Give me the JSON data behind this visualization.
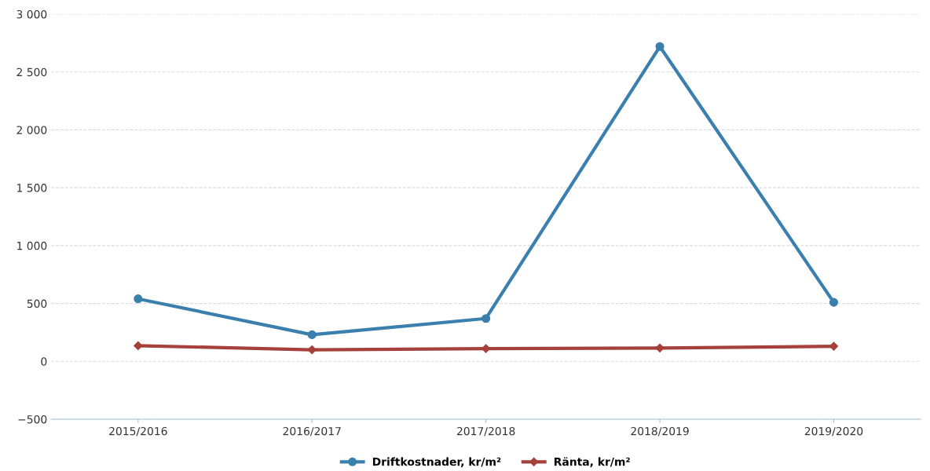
{
  "chart_data": {
    "type": "line",
    "categories": [
      "2015/2016",
      "2016/2017",
      "2017/2018",
      "2018/2019",
      "2019/2020"
    ],
    "series": [
      {
        "name": "Driftkostnader, kr/m²",
        "color": "#3a7fad",
        "marker": "circle",
        "values": [
          540,
          230,
          370,
          2720,
          510
        ]
      },
      {
        "name": "Ränta, kr/m²",
        "color": "#a5403a",
        "marker": "diamond",
        "values": [
          135,
          100,
          110,
          115,
          130
        ]
      }
    ],
    "ylim": [
      -500,
      3000
    ],
    "yticks": [
      {
        "value": -500,
        "label": "−500"
      },
      0,
      500,
      {
        "value": 1000,
        "label": "1 000"
      },
      {
        "value": 1500,
        "label": "1 500"
      },
      {
        "value": 2000,
        "label": "2 000"
      },
      {
        "value": 2500,
        "label": "2 500"
      },
      {
        "value": 3000,
        "label": "3 000"
      }
    ],
    "grid": "y",
    "legend": "bottom",
    "line_style": "solid"
  }
}
